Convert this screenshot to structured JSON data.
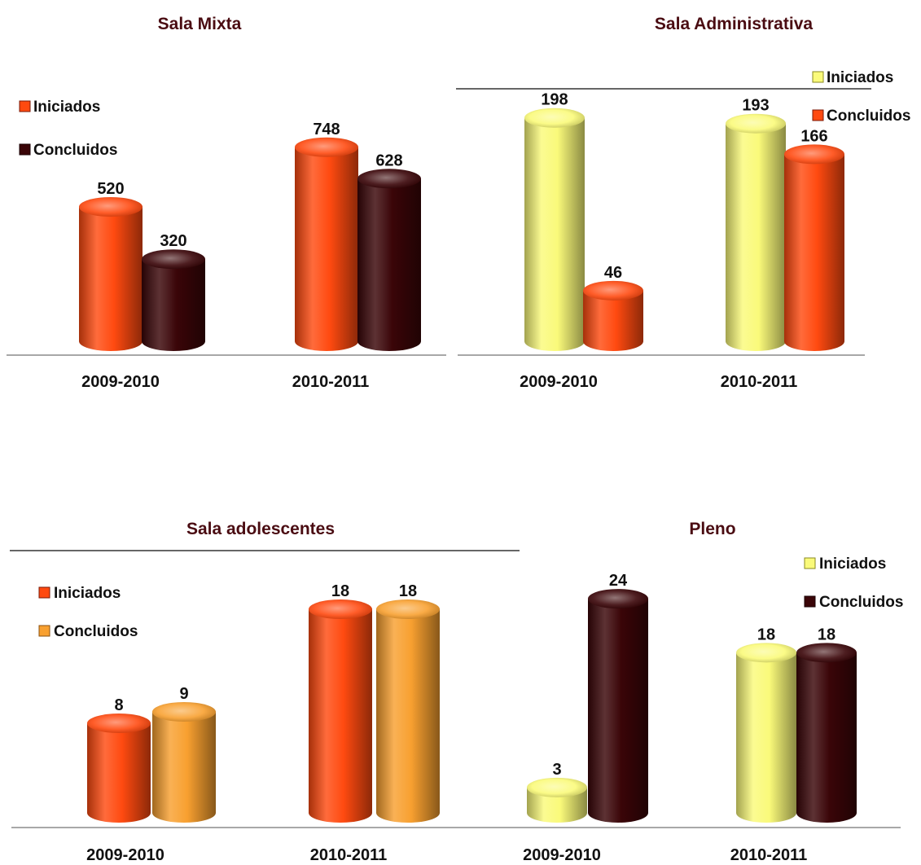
{
  "chart_data": [
    {
      "type": "bar",
      "title": "Sala Mixta",
      "categories": [
        "2009-2010",
        "2010-2011"
      ],
      "series": [
        {
          "name": "Iniciados",
          "values": [
            520,
            748
          ],
          "color": "#ff4a10"
        },
        {
          "name": "Concluidos",
          "values": [
            320,
            628
          ],
          "color": "#3a0508"
        }
      ],
      "data_labels": [
        [
          "520",
          "748"
        ],
        [
          "320",
          "628"
        ]
      ],
      "ylim": [
        0,
        850
      ],
      "legend": "top-left",
      "grid": false
    },
    {
      "type": "bar",
      "title": "Sala Administrativa",
      "categories": [
        "2009-2010",
        "2010-2011"
      ],
      "series": [
        {
          "name": "Iniciados",
          "values": [
            198,
            193
          ],
          "color": "#fafa7a"
        },
        {
          "name": "Concluidos",
          "values": [
            46,
            166
          ],
          "color": "#ff4a10"
        }
      ],
      "data_labels": [
        [
          "198",
          "193"
        ],
        [
          "46",
          "166"
        ]
      ],
      "ylim": [
        0,
        210
      ],
      "legend": "top-right",
      "grid": false
    },
    {
      "type": "bar",
      "title": "Sala adolescentes",
      "categories": [
        "2009-2010",
        "2010-2011"
      ],
      "series": [
        {
          "name": "Iniciados",
          "values": [
            8,
            18
          ],
          "color": "#ff4a10"
        },
        {
          "name": "Concluidos",
          "values": [
            9,
            18
          ],
          "color": "#f8a030"
        }
      ],
      "data_labels": [
        [
          "8",
          "18"
        ],
        [
          "9",
          "18"
        ]
      ],
      "ylim": [
        0,
        21
      ],
      "legend": "top-left",
      "grid": false
    },
    {
      "type": "bar",
      "title": "Pleno",
      "categories": [
        "2009-2010",
        "2010-2011"
      ],
      "series": [
        {
          "name": "Iniciados",
          "values": [
            3,
            18
          ],
          "color": "#fafa7a"
        },
        {
          "name": "Concluidos",
          "values": [
            24,
            18
          ],
          "color": "#3a0508"
        }
      ],
      "data_labels": [
        [
          "3",
          "18"
        ],
        [
          "24",
          "18"
        ]
      ],
      "ylim": [
        0,
        27
      ],
      "legend": "top-right",
      "grid": false
    }
  ]
}
